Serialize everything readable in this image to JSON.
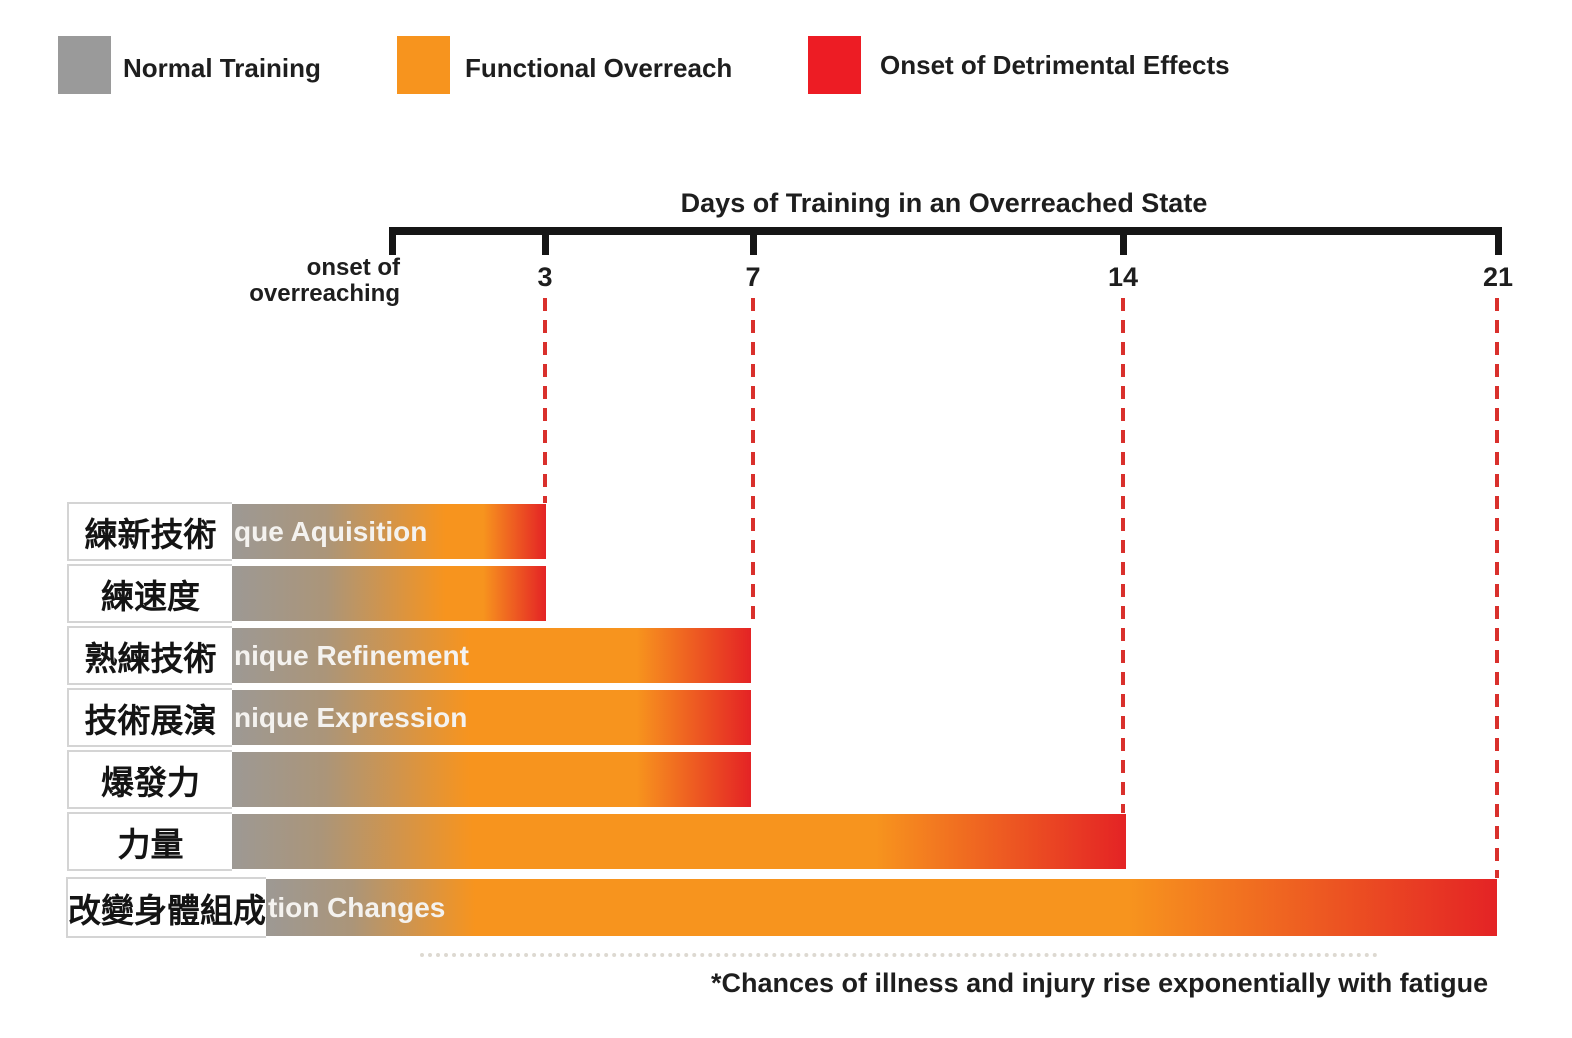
{
  "legend": {
    "items": [
      {
        "label": "Normal Training",
        "color": "#9a9a9a"
      },
      {
        "label": "Functional Overreach",
        "color": "#f7941e"
      },
      {
        "label": "Onset of Detrimental Effects",
        "color": "#ed1c24"
      }
    ]
  },
  "axis": {
    "title": "Days of Training in an Overreached State",
    "origin_label": "onset of\noverreaching",
    "tick_labels": [
      "3",
      "7",
      "14",
      "21"
    ]
  },
  "footnote": "*Chances of illness and injury rise exponentially with fatigue",
  "chart_data": {
    "type": "bar",
    "orientation": "horizontal",
    "title": "Days of Training in an Overreached State",
    "xlabel": "Days of Training in an Overreached State",
    "x_ticks": [
      3,
      7,
      14,
      21
    ],
    "x_origin_label": "onset of overreaching",
    "legend": [
      "Normal Training",
      "Functional Overreach",
      "Onset of Detrimental Effects"
    ],
    "colors": {
      "normal_training": "#9a9a9a",
      "functional_overreach": "#f7941e",
      "detrimental_effects": "#ed1c24"
    },
    "rows": [
      {
        "label": "練新技術",
        "bar_text_visible": "que Aquisition",
        "days": 3
      },
      {
        "label": "練速度",
        "bar_text_visible": "",
        "days": 3
      },
      {
        "label": "熟練技術",
        "bar_text_visible": "nique Refinement",
        "days": 7
      },
      {
        "label": "技術展演",
        "bar_text_visible": "nique Expression",
        "days": 7
      },
      {
        "label": "爆發力",
        "bar_text_visible": "",
        "days": 7
      },
      {
        "label": "力量",
        "bar_text_visible": "",
        "days": 14
      },
      {
        "label": "改變身體組成",
        "bar_text_visible": "tion Changes",
        "days": 21
      }
    ],
    "footnote": "*Chances of illness and injury rise exponentially with fatigue"
  }
}
